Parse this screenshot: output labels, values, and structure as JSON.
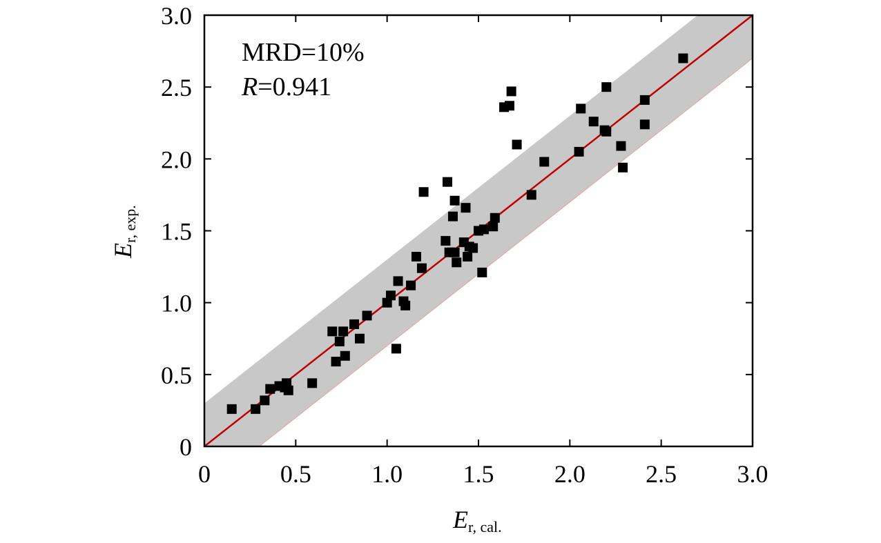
{
  "chart_data": {
    "type": "scatter",
    "xlim": [
      0,
      3.0
    ],
    "ylim": [
      0,
      3.0
    ],
    "xticks": [
      "0",
      "0.5",
      "1.0",
      "1.5",
      "2.0",
      "2.5",
      "3.0"
    ],
    "yticks": [
      "0",
      "0.5",
      "1.0",
      "1.5",
      "2.0",
      "2.5",
      "3.0"
    ],
    "xlabel": {
      "main": "E",
      "sub": "r, cal."
    },
    "ylabel": {
      "main": "E",
      "sub": "r, exp."
    },
    "annotations": [
      {
        "text": "MRD=10%"
      },
      {
        "italic": "R",
        "text": "=0.941"
      }
    ],
    "grid": false,
    "reference_line": {
      "slope": 1,
      "intercept": 0,
      "color": "#c00000"
    },
    "band": {
      "offset": 0.3,
      "color": "#c8c8c8"
    },
    "marker_color": "#000000",
    "points": [
      [
        0.15,
        0.26
      ],
      [
        0.28,
        0.26
      ],
      [
        0.33,
        0.32
      ],
      [
        0.36,
        0.4
      ],
      [
        0.41,
        0.42
      ],
      [
        0.44,
        0.41
      ],
      [
        0.45,
        0.44
      ],
      [
        0.46,
        0.39
      ],
      [
        0.59,
        0.44
      ],
      [
        0.7,
        0.8
      ],
      [
        0.72,
        0.59
      ],
      [
        0.74,
        0.73
      ],
      [
        0.76,
        0.8
      ],
      [
        0.77,
        0.63
      ],
      [
        0.82,
        0.85
      ],
      [
        0.85,
        0.75
      ],
      [
        0.89,
        0.91
      ],
      [
        1.0,
        1.0
      ],
      [
        1.02,
        1.05
      ],
      [
        1.05,
        0.68
      ],
      [
        1.06,
        1.15
      ],
      [
        1.09,
        1.01
      ],
      [
        1.1,
        0.98
      ],
      [
        1.13,
        1.12
      ],
      [
        1.16,
        1.32
      ],
      [
        1.19,
        1.24
      ],
      [
        1.2,
        1.77
      ],
      [
        1.32,
        1.43
      ],
      [
        1.33,
        1.84
      ],
      [
        1.34,
        1.35
      ],
      [
        1.36,
        1.6
      ],
      [
        1.37,
        1.71
      ],
      [
        1.37,
        1.35
      ],
      [
        1.38,
        1.28
      ],
      [
        1.42,
        1.42
      ],
      [
        1.43,
        1.66
      ],
      [
        1.44,
        1.32
      ],
      [
        1.45,
        1.39
      ],
      [
        1.47,
        1.38
      ],
      [
        1.5,
        1.5
      ],
      [
        1.52,
        1.21
      ],
      [
        1.53,
        1.51
      ],
      [
        1.58,
        1.53
      ],
      [
        1.59,
        1.59
      ],
      [
        1.64,
        2.36
      ],
      [
        1.67,
        2.37
      ],
      [
        1.68,
        2.47
      ],
      [
        1.71,
        2.1
      ],
      [
        1.79,
        1.75
      ],
      [
        1.86,
        1.98
      ],
      [
        2.05,
        2.05
      ],
      [
        2.06,
        2.35
      ],
      [
        2.13,
        2.26
      ],
      [
        2.19,
        2.2
      ],
      [
        2.2,
        2.5
      ],
      [
        2.2,
        2.19
      ],
      [
        2.28,
        2.09
      ],
      [
        2.29,
        1.94
      ],
      [
        2.41,
        2.24
      ],
      [
        2.41,
        2.41
      ],
      [
        2.62,
        2.7
      ]
    ]
  }
}
